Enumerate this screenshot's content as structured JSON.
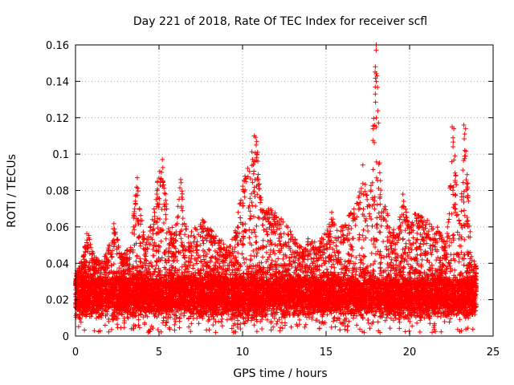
{
  "chart_data": {
    "type": "scatter",
    "title": "Day 221 of 2018, Rate Of TEC Index for receiver scfl",
    "xlabel": "GPS time / hours",
    "ylabel": "ROTI / TECUs",
    "xlim": [
      0,
      25
    ],
    "ylim": [
      0,
      0.16
    ],
    "grid": true,
    "marker": "+",
    "marker_color": "#ff0000",
    "x_ticks": [
      0,
      5,
      10,
      15,
      20,
      25
    ],
    "y_ticks": [
      0,
      0.02,
      0.04,
      0.06,
      0.08,
      0.1,
      0.12,
      0.14,
      0.16
    ],
    "x_tick_labels": [
      "0",
      "5",
      "10",
      "15",
      "20",
      "25"
    ],
    "y_tick_labels": [
      "0",
      "0.02",
      "0.04",
      "0.06",
      "0.08",
      "0.1",
      "0.12",
      "0.14",
      "0.16"
    ],
    "series": [
      {
        "name": "scfl",
        "x_range_hours": [
          0,
          24
        ],
        "baseline_band": [
          0.005,
          0.035
        ],
        "envelope": [
          [
            0.0,
            0.034
          ],
          [
            0.5,
            0.045
          ],
          [
            0.7,
            0.06
          ],
          [
            1.0,
            0.048
          ],
          [
            1.5,
            0.04
          ],
          [
            2.0,
            0.05
          ],
          [
            2.3,
            0.062
          ],
          [
            2.8,
            0.045
          ],
          [
            3.3,
            0.05
          ],
          [
            3.7,
            0.087
          ],
          [
            4.2,
            0.05
          ],
          [
            4.6,
            0.065
          ],
          [
            4.9,
            0.085
          ],
          [
            5.2,
            0.097
          ],
          [
            5.6,
            0.06
          ],
          [
            6.0,
            0.06
          ],
          [
            6.3,
            0.087
          ],
          [
            6.7,
            0.055
          ],
          [
            7.2,
            0.06
          ],
          [
            7.5,
            0.065
          ],
          [
            8.0,
            0.06
          ],
          [
            8.5,
            0.055
          ],
          [
            9.0,
            0.05
          ],
          [
            9.5,
            0.055
          ],
          [
            10.0,
            0.085
          ],
          [
            10.5,
            0.102
          ],
          [
            10.8,
            0.11
          ],
          [
            11.2,
            0.07
          ],
          [
            11.7,
            0.07
          ],
          [
            12.0,
            0.068
          ],
          [
            12.5,
            0.065
          ],
          [
            13.0,
            0.055
          ],
          [
            13.5,
            0.05
          ],
          [
            14.0,
            0.055
          ],
          [
            14.5,
            0.05
          ],
          [
            15.0,
            0.06
          ],
          [
            15.3,
            0.069
          ],
          [
            15.8,
            0.06
          ],
          [
            16.3,
            0.065
          ],
          [
            16.8,
            0.075
          ],
          [
            17.2,
            0.094
          ],
          [
            17.6,
            0.07
          ],
          [
            18.0,
            0.16
          ],
          [
            18.3,
            0.08
          ],
          [
            18.8,
            0.065
          ],
          [
            19.2,
            0.055
          ],
          [
            19.6,
            0.078
          ],
          [
            20.0,
            0.06
          ],
          [
            20.3,
            0.068
          ],
          [
            20.7,
            0.066
          ],
          [
            21.2,
            0.065
          ],
          [
            21.7,
            0.06
          ],
          [
            22.2,
            0.05
          ],
          [
            22.6,
            0.116
          ],
          [
            23.0,
            0.06
          ],
          [
            23.3,
            0.117
          ],
          [
            23.7,
            0.045
          ],
          [
            24.0,
            0.038
          ]
        ],
        "outliers": [
          {
            "x": 18.0,
            "y": 0.16
          },
          {
            "x": 18.0,
            "y": 0.157
          },
          {
            "x": 17.95,
            "y": 0.148
          },
          {
            "x": 18.05,
            "y": 0.143
          },
          {
            "x": 17.95,
            "y": 0.133
          },
          {
            "x": 18.0,
            "y": 0.115
          },
          {
            "x": 22.55,
            "y": 0.115
          },
          {
            "x": 22.65,
            "y": 0.114
          },
          {
            "x": 22.6,
            "y": 0.109
          },
          {
            "x": 22.6,
            "y": 0.104
          },
          {
            "x": 23.25,
            "y": 0.116
          },
          {
            "x": 23.35,
            "y": 0.114
          },
          {
            "x": 23.3,
            "y": 0.111
          },
          {
            "x": 23.3,
            "y": 0.102
          },
          {
            "x": 23.35,
            "y": 0.099
          },
          {
            "x": 10.7,
            "y": 0.11
          },
          {
            "x": 10.85,
            "y": 0.107
          },
          {
            "x": 10.6,
            "y": 0.097
          },
          {
            "x": 10.9,
            "y": 0.101
          },
          {
            "x": 10.75,
            "y": 0.086
          },
          {
            "x": 5.2,
            "y": 0.097
          },
          {
            "x": 5.15,
            "y": 0.09
          },
          {
            "x": 4.9,
            "y": 0.085
          },
          {
            "x": 3.7,
            "y": 0.087
          },
          {
            "x": 6.3,
            "y": 0.086
          },
          {
            "x": 10.1,
            "y": 0.085
          },
          {
            "x": 17.2,
            "y": 0.094
          },
          {
            "x": 19.6,
            "y": 0.078
          }
        ]
      }
    ]
  }
}
